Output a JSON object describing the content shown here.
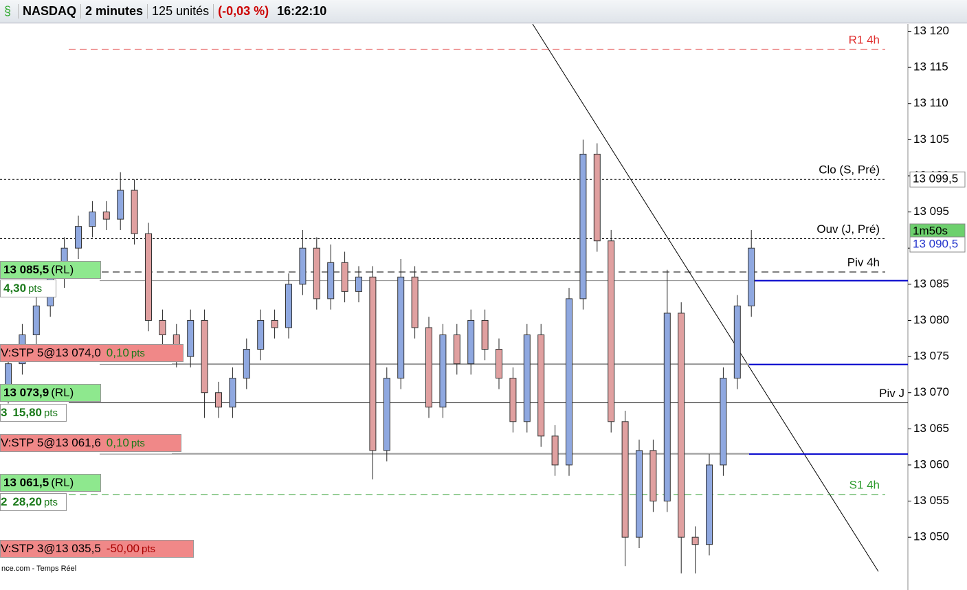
{
  "toolbar": {
    "instrument": "NASDAQ",
    "timeframe": "2 minutes",
    "units": "125 unités",
    "change": "(-0,03 %)",
    "time": "16:22:10"
  },
  "chart_data": {
    "type": "candlestick",
    "open": [
      13070,
      13074,
      13078,
      13082,
      13086,
      13090,
      13093,
      13095,
      13094,
      13098,
      13092,
      13080,
      13078,
      13075,
      13080,
      13070,
      13068,
      13072,
      13076,
      13080,
      13079,
      13085,
      13090,
      13083,
      13088,
      13084,
      13086,
      13062,
      13072,
      13086,
      13079,
      13068,
      13078,
      13074,
      13080,
      13076,
      13072,
      13066,
      13078,
      13064,
      13060,
      13083,
      13103,
      13091,
      13066,
      13050,
      13062,
      13055,
      13081,
      13050,
      13049,
      13060,
      13072,
      13082
    ],
    "high": [
      13075.5,
      13079.5,
      13083.5,
      13087.5,
      13091.5,
      13094.5,
      13096.5,
      13096.5,
      13100.5,
      13099.5,
      13093.5,
      13081.5,
      13079.5,
      13081.5,
      13081.5,
      13071.5,
      13073.5,
      13077.5,
      13081.5,
      13081.5,
      13086.5,
      13092.5,
      13091.5,
      13090.5,
      13089.5,
      13087.5,
      13087.5,
      13073.5,
      13088.5,
      13087.5,
      13080.5,
      13079.5,
      13079.5,
      13081.5,
      13081.5,
      13077.5,
      13073.5,
      13079.5,
      13079.5,
      13065.5,
      13084.5,
      13105,
      13104.5,
      13092.5,
      13067.5,
      13063.5,
      13063.5,
      13087,
      13082.5,
      13051.5,
      13061.5,
      13073.5,
      13083.5,
      13092.5
    ],
    "low": [
      13068.5,
      13072.5,
      13076.5,
      13080.5,
      13084.5,
      13088.5,
      13091.5,
      13092.5,
      13092.5,
      13090.5,
      13078.5,
      13076.5,
      13073.5,
      13073.5,
      13066.5,
      13066.5,
      13066.5,
      13070.5,
      13074.5,
      13077.5,
      13077.5,
      13083.5,
      13081.5,
      13081.5,
      13082.5,
      13082.5,
      13058,
      13060.5,
      13070.5,
      13077.5,
      13066.5,
      13066.5,
      13072.5,
      13072.5,
      13074.5,
      13070.5,
      13064.5,
      13064.5,
      13062.5,
      13058.5,
      13058.5,
      13081.5,
      13089.5,
      13064.5,
      13046,
      13048.5,
      13053.5,
      13053.5,
      13045,
      13045,
      13047.5,
      13058.5,
      13070.5,
      13080.5
    ],
    "close": [
      13074,
      13078,
      13082,
      13086,
      13090,
      13093,
      13095,
      13094,
      13098,
      13092,
      13080,
      13078,
      13075,
      13080,
      13070,
      13068,
      13072,
      13076,
      13080,
      13079,
      13085,
      13090,
      13083,
      13088,
      13084,
      13086,
      13062,
      13072,
      13086,
      13079,
      13068,
      13078,
      13074,
      13080,
      13076,
      13072,
      13066,
      13078,
      13064,
      13060,
      13083,
      13103,
      13091,
      13066,
      13050,
      13062,
      13055,
      13081,
      13050,
      13049,
      13060,
      13072,
      13082,
      13090
    ],
    "up_color": "#8fa8e0",
    "down_color": "#e0a0a0",
    "ylim": [
      13042.7,
      13121
    ],
    "yticks": [
      {
        "value": 13050,
        "label": "13 050"
      },
      {
        "value": 13055,
        "label": "13 055"
      },
      {
        "value": 13060,
        "label": "13 060"
      },
      {
        "value": 13065,
        "label": "13 065"
      },
      {
        "value": 13070,
        "label": "13 070"
      },
      {
        "value": 13075,
        "label": "13 075"
      },
      {
        "value": 13080,
        "label": "13 080"
      },
      {
        "value": 13085,
        "label": "13 085"
      },
      {
        "value": 13090,
        "label": "13 090"
      },
      {
        "value": 13095,
        "label": "13 095"
      },
      {
        "value": 13100,
        "label": "13 100"
      },
      {
        "value": 13105,
        "label": "13 105"
      },
      {
        "value": 13110,
        "label": "13 110"
      },
      {
        "value": 13115,
        "label": "13 115"
      },
      {
        "value": 13120,
        "label": "13 120"
      }
    ],
    "levels": [
      {
        "label": "R1 4h",
        "value": 13117.5,
        "color": "#e03030"
      },
      {
        "label": "Clo (S, Pré)",
        "value": 13099.5,
        "color": "#000000"
      },
      {
        "label": "Ouv (J, Pré)",
        "value": 13091.3,
        "color": "#000000"
      },
      {
        "label": "Piv 4h",
        "value": 13086.7,
        "color": "#000000"
      },
      {
        "label": "Piv J",
        "value": 13068.6,
        "color": "#000000"
      },
      {
        "label": "S1 4h",
        "value": 13055.9,
        "color": "#2a9a2a"
      }
    ],
    "order_lines": [
      13085.5,
      13073.9,
      13061.5
    ],
    "stop_lines": [
      13074.0,
      13061.6
    ],
    "price_tags": [
      {
        "label": "13 099,5",
        "value": 13099.5
      },
      {
        "label": "1m50s",
        "value": 13092.3
      },
      {
        "label": "13 090,5",
        "value": 13090.5
      }
    ]
  },
  "orders": [
    {
      "price": "13 085,5",
      "type": "(RL)",
      "gain": "4,30",
      "unit": "pts"
    },
    {
      "stop": "V:STP 5@13 074,0",
      "gain": "0,10",
      "unit": "pts"
    },
    {
      "price": "13 073,9",
      "type": "(RL)",
      "qty": "3",
      "gain": "15,80",
      "unit": "pts"
    },
    {
      "stop": "V:STP 5@13 061,6",
      "gain": "0,10",
      "unit": "pts"
    },
    {
      "price": "13 061,5",
      "type": "(RL)",
      "qty": "2",
      "gain": "28,20",
      "unit": "pts"
    },
    {
      "stop": "V:STP 3@13 035,5",
      "gain": "-50,00",
      "unit": "pts"
    }
  ],
  "footer": "nce.com - Temps Réel"
}
